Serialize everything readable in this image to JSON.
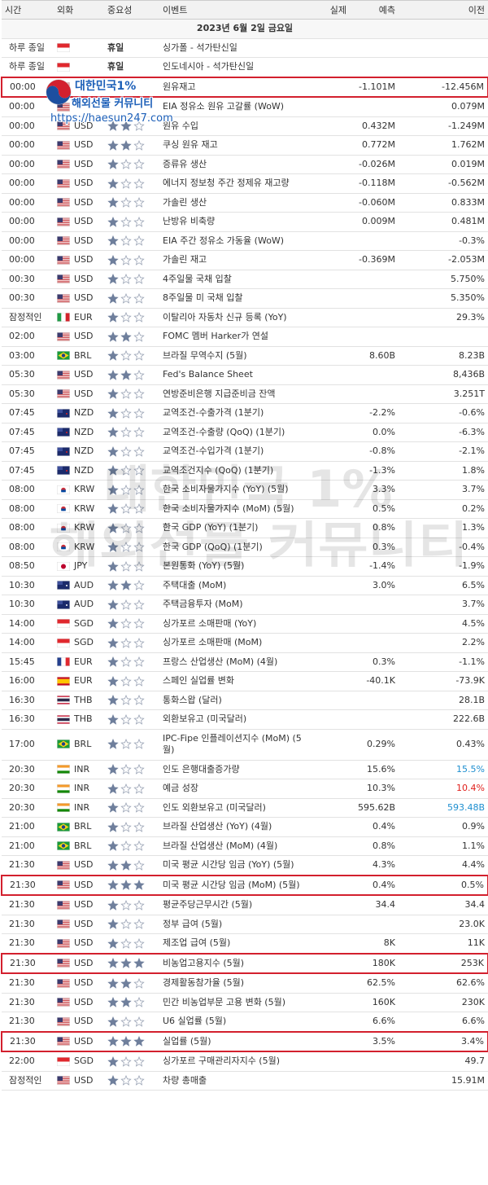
{
  "columns": [
    "시간",
    "외화",
    "중요성",
    "이벤트",
    "실제",
    "예측",
    "이전"
  ],
  "date": "2023년 6월 2일 금요일",
  "watermark": {
    "logo_line1": "대한민국1%",
    "logo_line2": "해외선물 커뮤니티",
    "logo_url": "https://haesun247.com",
    "big_line1": "대한민국 1%",
    "big_line2": "해외선물 커뮤니티"
  },
  "rows": [
    {
      "time": "하루 종일",
      "currency": null,
      "importance": "휴일",
      "event": "싱가폴 - 석가탄신일",
      "actual": null,
      "forecast": null,
      "previous": null
    },
    {
      "time": "하루 종일",
      "currency": null,
      "importance": "휴일",
      "event": "인도네시아 - 석가탄신일",
      "actual": null,
      "forecast": null,
      "previous": null
    },
    {
      "time": "00:00",
      "currency": null,
      "importance": null,
      "event": "원유재고",
      "actual": null,
      "forecast": "-1.101M",
      "previous": "-12.456M",
      "highlight": true
    },
    {
      "time": "00:00",
      "currency": null,
      "importance": null,
      "event": "EIA 정유소 원유 고갈률 (WoW)",
      "actual": null,
      "forecast": null,
      "previous": "0.079M"
    },
    {
      "time": "00:00",
      "currency": "USD",
      "importance": 2,
      "event": "원유 수입",
      "actual": null,
      "forecast": "0.432M",
      "previous": "-1.249M"
    },
    {
      "time": "00:00",
      "currency": "USD",
      "importance": 2,
      "event": "쿠싱 원유 재고",
      "actual": null,
      "forecast": "0.772M",
      "previous": "1.762M"
    },
    {
      "time": "00:00",
      "currency": "USD",
      "importance": 1,
      "event": "증류유 생산",
      "actual": null,
      "forecast": "-0.026M",
      "previous": "0.019M"
    },
    {
      "time": "00:00",
      "currency": "USD",
      "importance": 1,
      "event": "에너지 정보청 주간 정제유 재고량",
      "actual": null,
      "forecast": "-0.118M",
      "previous": "-0.562M"
    },
    {
      "time": "00:00",
      "currency": "USD",
      "importance": 1,
      "event": "가솔린 생산",
      "actual": null,
      "forecast": "-0.060M",
      "previous": "0.833M"
    },
    {
      "time": "00:00",
      "currency": "USD",
      "importance": 1,
      "event": "난방유 비축량",
      "actual": null,
      "forecast": "0.009M",
      "previous": "0.481M"
    },
    {
      "time": "00:00",
      "currency": "USD",
      "importance": 1,
      "event": "EIA 주간 정유소 가동율 (WoW)",
      "actual": null,
      "forecast": null,
      "previous": "-0.3%"
    },
    {
      "time": "00:00",
      "currency": "USD",
      "importance": 1,
      "event": "가솔린 재고",
      "actual": null,
      "forecast": "-0.369M",
      "previous": "-2.053M"
    },
    {
      "time": "00:30",
      "currency": "USD",
      "importance": 1,
      "event": "4주일물 국채 입찰",
      "actual": null,
      "forecast": null,
      "previous": "5.750%"
    },
    {
      "time": "00:30",
      "currency": "USD",
      "importance": 1,
      "event": "8주일물 미 국채 입찰",
      "actual": null,
      "forecast": null,
      "previous": "5.350%"
    },
    {
      "time": "잠정적인",
      "currency": "EUR",
      "importance": 1,
      "event": "이탈리아 자동차 신규 등록 (YoY)",
      "actual": null,
      "forecast": null,
      "previous": "29.3%"
    },
    {
      "time": "02:00",
      "currency": "USD",
      "importance": 2,
      "event": "FOMC 멤버 Harker가 연설",
      "actual": null,
      "forecast": null,
      "previous": null
    },
    {
      "time": "03:00",
      "currency": "BRL",
      "importance": 1,
      "event": "브라질 무역수지 (5월)",
      "actual": null,
      "forecast": "8.60B",
      "previous": "8.23B"
    },
    {
      "time": "05:30",
      "currency": "USD",
      "importance": 2,
      "event": "Fed's Balance Sheet",
      "actual": null,
      "forecast": null,
      "previous": "8,436B"
    },
    {
      "time": "05:30",
      "currency": "USD",
      "importance": 1,
      "event": "연방준비은행 지급준비금 잔액",
      "actual": null,
      "forecast": null,
      "previous": "3.251T"
    },
    {
      "time": "07:45",
      "currency": "NZD",
      "importance": 1,
      "event": "교역조건-수출가격 (1분기)",
      "actual": null,
      "forecast": "-2.2%",
      "previous": "-0.6%"
    },
    {
      "time": "07:45",
      "currency": "NZD",
      "importance": 1,
      "event": "교역조건-수출량 (QoQ) (1분기)",
      "actual": null,
      "forecast": "0.0%",
      "previous": "-6.3%"
    },
    {
      "time": "07:45",
      "currency": "NZD",
      "importance": 1,
      "event": "교역조건-수입가격 (1분기)",
      "actual": null,
      "forecast": "-0.8%",
      "previous": "-2.1%"
    },
    {
      "time": "07:45",
      "currency": "NZD",
      "importance": 1,
      "event": "교역조건지수 (QoQ) (1분기)",
      "actual": null,
      "forecast": "-1.3%",
      "previous": "1.8%"
    },
    {
      "time": "08:00",
      "currency": "KRW",
      "importance": 1,
      "event": "한국 소비자물가지수 (YoY) (5월)",
      "actual": null,
      "forecast": "3.3%",
      "previous": "3.7%"
    },
    {
      "time": "08:00",
      "currency": "KRW",
      "importance": 1,
      "event": "한국 소비자물가지수 (MoM) (5월)",
      "actual": null,
      "forecast": "0.5%",
      "previous": "0.2%"
    },
    {
      "time": "08:00",
      "currency": "KRW",
      "importance": 1,
      "event": "한국 GDP (YoY) (1분기)",
      "actual": null,
      "forecast": "0.8%",
      "previous": "1.3%"
    },
    {
      "time": "08:00",
      "currency": "KRW",
      "importance": 1,
      "event": "한국 GDP (QoQ) (1분기)",
      "actual": null,
      "forecast": "0.3%",
      "previous": "-0.4%"
    },
    {
      "time": "08:50",
      "currency": "JPY",
      "importance": 1,
      "event": "본원통화 (YoY) (5월)",
      "actual": null,
      "forecast": "-1.4%",
      "previous": "-1.9%"
    },
    {
      "time": "10:30",
      "currency": "AUD",
      "importance": 2,
      "event": "주택대출 (MoM)",
      "actual": null,
      "forecast": "3.0%",
      "previous": "6.5%"
    },
    {
      "time": "10:30",
      "currency": "AUD",
      "importance": 1,
      "event": "주택금융투자 (MoM)",
      "actual": null,
      "forecast": null,
      "previous": "3.7%"
    },
    {
      "time": "14:00",
      "currency": "SGD",
      "importance": 1,
      "event": "싱가포르 소매판매 (YoY)",
      "actual": null,
      "forecast": null,
      "previous": "4.5%"
    },
    {
      "time": "14:00",
      "currency": "SGD",
      "importance": 1,
      "event": "싱가포르 소매판매 (MoM)",
      "actual": null,
      "forecast": null,
      "previous": "2.2%"
    },
    {
      "time": "15:45",
      "currency": "EUR",
      "importance": 1,
      "event": "프랑스 산업생산 (MoM) (4월)",
      "actual": null,
      "forecast": "0.3%",
      "previous": "-1.1%"
    },
    {
      "time": "16:00",
      "currency": "EUR",
      "importance": 1,
      "event": "스페인 실업률 변화",
      "actual": null,
      "forecast": "-40.1K",
      "previous": "-73.9K"
    },
    {
      "time": "16:30",
      "currency": "THB",
      "importance": 1,
      "event": "통화스왑 (달러)",
      "actual": null,
      "forecast": null,
      "previous": "28.1B"
    },
    {
      "time": "16:30",
      "currency": "THB",
      "importance": 1,
      "event": "외환보유고 (미국달러)",
      "actual": null,
      "forecast": null,
      "previous": "222.6B"
    },
    {
      "time": "17:00",
      "currency": "BRL",
      "importance": 1,
      "event": "IPC-Fipe 인플레이션지수 (MoM) (5월)",
      "actual": null,
      "forecast": "0.29%",
      "previous": "0.43%"
    },
    {
      "time": "20:30",
      "currency": "INR",
      "importance": 1,
      "event": "인도 은행대출증가량",
      "actual": null,
      "forecast": "15.6%",
      "previous": "15.5%",
      "previous_color": "#1e8fd0"
    },
    {
      "time": "20:30",
      "currency": "INR",
      "importance": 1,
      "event": "예금 성장",
      "actual": null,
      "forecast": "10.3%",
      "previous": "10.4%",
      "previous_color": "#e0201c"
    },
    {
      "time": "20:30",
      "currency": "INR",
      "importance": 1,
      "event": "인도 외환보유고 (미국달러)",
      "actual": null,
      "forecast": "595.62B",
      "previous": "593.48B",
      "previous_color": "#1e8fd0"
    },
    {
      "time": "21:00",
      "currency": "BRL",
      "importance": 1,
      "event": "브라질 산업생산 (YoY) (4월)",
      "actual": null,
      "forecast": "0.4%",
      "previous": "0.9%"
    },
    {
      "time": "21:00",
      "currency": "BRL",
      "importance": 1,
      "event": "브라질 산업생산 (MoM) (4월)",
      "actual": null,
      "forecast": "0.8%",
      "previous": "1.1%"
    },
    {
      "time": "21:30",
      "currency": "USD",
      "importance": 2,
      "event": "미국 평균 시간당 임금 (YoY) (5월)",
      "actual": null,
      "forecast": "4.3%",
      "previous": "4.4%"
    },
    {
      "time": "21:30",
      "currency": "USD",
      "importance": 3,
      "event": "미국 평균 시간당 임금 (MoM) (5월)",
      "actual": null,
      "forecast": "0.4%",
      "previous": "0.5%",
      "highlight": true
    },
    {
      "time": "21:30",
      "currency": "USD",
      "importance": 1,
      "event": "평균주당근무시간 (5월)",
      "actual": null,
      "forecast": "34.4",
      "previous": "34.4"
    },
    {
      "time": "21:30",
      "currency": "USD",
      "importance": 1,
      "event": "정부 급여 (5월)",
      "actual": null,
      "forecast": null,
      "previous": "23.0K"
    },
    {
      "time": "21:30",
      "currency": "USD",
      "importance": 1,
      "event": "제조업 급여 (5월)",
      "actual": null,
      "forecast": "8K",
      "previous": "11K"
    },
    {
      "time": "21:30",
      "currency": "USD",
      "importance": 3,
      "event": "비농업고용지수 (5월)",
      "actual": null,
      "forecast": "180K",
      "previous": "253K",
      "highlight": true
    },
    {
      "time": "21:30",
      "currency": "USD",
      "importance": 2,
      "event": "경제활동참가율 (5월)",
      "actual": null,
      "forecast": "62.5%",
      "previous": "62.6%"
    },
    {
      "time": "21:30",
      "currency": "USD",
      "importance": 2,
      "event": "민간 비농업부문 고용 변화 (5월)",
      "actual": null,
      "forecast": "160K",
      "previous": "230K"
    },
    {
      "time": "21:30",
      "currency": "USD",
      "importance": 1,
      "event": "U6 실업률 (5월)",
      "actual": null,
      "forecast": "6.6%",
      "previous": "6.6%"
    },
    {
      "time": "21:30",
      "currency": "USD",
      "importance": 3,
      "event": "실업률 (5월)",
      "actual": null,
      "forecast": "3.5%",
      "previous": "3.4%",
      "highlight": true
    },
    {
      "time": "22:00",
      "currency": "SGD",
      "importance": 1,
      "event": "싱가포르 구매관리자지수 (5월)",
      "actual": null,
      "forecast": null,
      "previous": "49.7"
    },
    {
      "time": "잠정적인",
      "currency": "USD",
      "importance": 1,
      "event": "차량 총매출",
      "actual": null,
      "forecast": null,
      "previous": "15.91M"
    }
  ]
}
